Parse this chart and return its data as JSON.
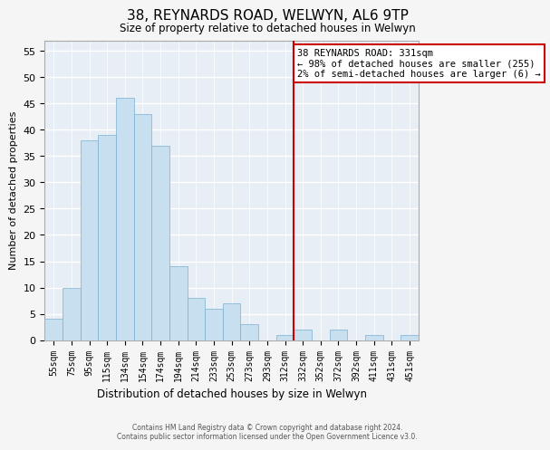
{
  "title": "38, REYNARDS ROAD, WELWYN, AL6 9TP",
  "subtitle": "Size of property relative to detached houses in Welwyn",
  "xlabel": "Distribution of detached houses by size in Welwyn",
  "ylabel": "Number of detached properties",
  "bar_labels": [
    "55sqm",
    "75sqm",
    "95sqm",
    "115sqm",
    "134sqm",
    "154sqm",
    "174sqm",
    "194sqm",
    "214sqm",
    "233sqm",
    "253sqm",
    "273sqm",
    "293sqm",
    "312sqm",
    "332sqm",
    "352sqm",
    "372sqm",
    "392sqm",
    "411sqm",
    "431sqm",
    "451sqm"
  ],
  "bar_heights": [
    4,
    10,
    38,
    39,
    46,
    43,
    37,
    14,
    8,
    6,
    7,
    3,
    0,
    1,
    2,
    0,
    2,
    0,
    1,
    0,
    1
  ],
  "bar_color": "#c8dff0",
  "bar_edge_color": "#7ab0d0",
  "ylim": [
    0,
    57
  ],
  "yticks": [
    0,
    5,
    10,
    15,
    20,
    25,
    30,
    35,
    40,
    45,
    50,
    55
  ],
  "property_line_index": 14,
  "property_line_color": "#cc0000",
  "annotation_line1": "38 REYNARDS ROAD: 331sqm",
  "annotation_line2": "← 98% of detached houses are smaller (255)",
  "annotation_line3": "2% of semi-detached houses are larger (6) →",
  "annotation_box_color": "#ffffff",
  "annotation_box_edge": "#cc0000",
  "footer_line1": "Contains HM Land Registry data © Crown copyright and database right 2024.",
  "footer_line2": "Contains public sector information licensed under the Open Government Licence v3.0.",
  "bg_color": "#f5f5f5",
  "plot_bg_color": "#e8eef5",
  "grid_color": "#ffffff",
  "spine_color": "#aaaaaa"
}
